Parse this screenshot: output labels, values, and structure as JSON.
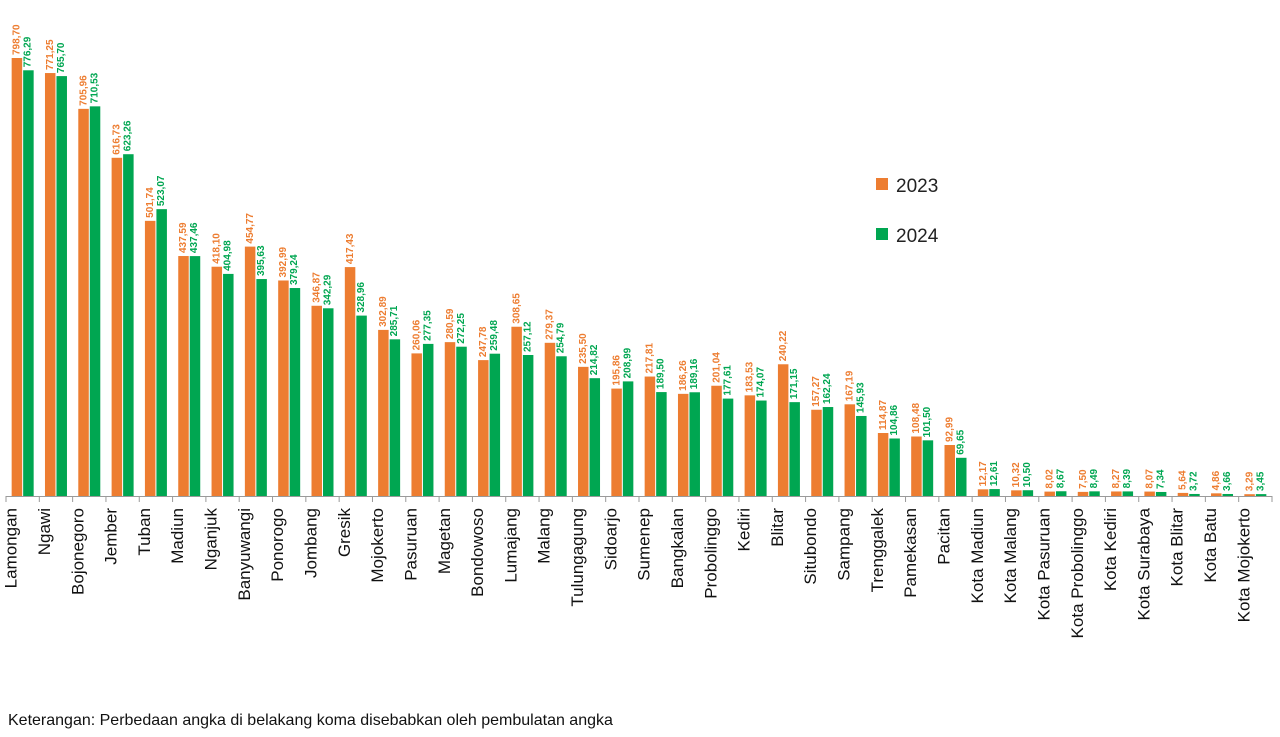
{
  "chart_data": {
    "type": "bar",
    "title": "",
    "xlabel": "",
    "ylabel": "",
    "ylim": [
      0,
      820
    ],
    "grid": false,
    "legend_position": "right",
    "categories": [
      "Lamongan",
      "Ngawi",
      "Bojonegoro",
      "Jember",
      "Tuban",
      "Madiun",
      "Nganjuk",
      "Banyuwangi",
      "Ponorogo",
      "Jombang",
      "Gresik",
      "Mojokerto",
      "Pasuruan",
      "Magetan",
      "Bondowoso",
      "Lumajang",
      "Malang",
      "Tulungagung",
      "Sidoarjo",
      "Sumenep",
      "Bangkalan",
      "Probolinggo",
      "Kediri",
      "Blitar",
      "Situbondo",
      "Sampang",
      "Trenggalek",
      "Pamekasan",
      "Pacitan",
      "Kota Madiun",
      "Kota Malang",
      "Kota Pasuruan",
      "Kota Probolinggo",
      "Kota Kediri",
      "Kota Surabaya",
      "Kota Blitar",
      "Kota Batu",
      "Kota Mojokerto"
    ],
    "series": [
      {
        "name": "2023",
        "color": "#ED7D31",
        "values": [
          798.7,
          771.25,
          705.96,
          616.73,
          501.74,
          437.59,
          418.1,
          454.77,
          392.99,
          346.87,
          417.43,
          302.89,
          260.06,
          280.59,
          247.78,
          308.65,
          279.37,
          235.5,
          195.86,
          217.81,
          186.26,
          201.04,
          183.53,
          240.22,
          157.27,
          167.19,
          114.87,
          108.48,
          92.99,
          12.17,
          10.32,
          8.02,
          7.5,
          8.27,
          8.07,
          5.64,
          4.86,
          3.29
        ],
        "labels": [
          "798,70",
          "771,25",
          "705,96",
          "616,73",
          "501,74",
          "437,59",
          "418,10",
          "454,77",
          "392,99",
          "346,87",
          "417,43",
          "302,89",
          "260,06",
          "280,59",
          "247,78",
          "308,65",
          "279,37",
          "235,50",
          "195,86",
          "217,81",
          "186,26",
          "201,04",
          "183,53",
          "240,22",
          "157,27",
          "167,19",
          "114,87",
          "108,48",
          "92,99",
          "12,17",
          "10,32",
          "8,02",
          "7,50",
          "8,27",
          "8,07",
          "5,64",
          "4,86",
          "3,29"
        ]
      },
      {
        "name": "2024",
        "color": "#00A651",
        "values": [
          776.29,
          765.7,
          710.53,
          623.26,
          523.07,
          437.46,
          404.98,
          395.63,
          379.24,
          342.29,
          328.96,
          285.71,
          277.35,
          272.25,
          259.48,
          257.12,
          254.79,
          214.82,
          208.99,
          189.5,
          189.16,
          177.61,
          174.07,
          171.15,
          162.24,
          145.93,
          104.86,
          101.5,
          69.65,
          12.61,
          10.5,
          8.67,
          8.49,
          8.39,
          7.34,
          3.72,
          3.66,
          3.45
        ],
        "labels": [
          "776,29",
          "765,70",
          "710,53",
          "623,26",
          "523,07",
          "437,46",
          "404,98",
          "395,63",
          "379,24",
          "342,29",
          "328,96",
          "285,71",
          "277,35",
          "272,25",
          "259,48",
          "257,12",
          "254,79",
          "214,82",
          "208,99",
          "189,50",
          "189,16",
          "177,61",
          "174,07",
          "171,15",
          "162,24",
          "145,93",
          "104,86",
          "101,50",
          "69,65",
          "12,61",
          "10,50",
          "8,67",
          "8,49",
          "8,39",
          "7,34",
          "3,72",
          "3,66",
          "3,45"
        ]
      }
    ],
    "note": "Keterangan: Perbedaan angka di belakang koma disebabkan oleh pembulatan angka"
  }
}
